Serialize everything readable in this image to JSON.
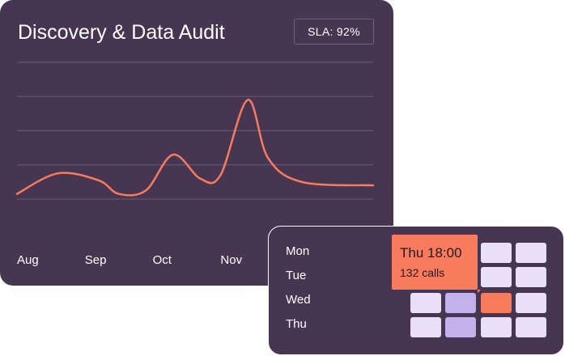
{
  "header": {
    "title": "Discovery & Data Audit",
    "sla_badge": "SLA: 92%"
  },
  "chart_data": {
    "type": "line",
    "title": "Discovery & Data Audit",
    "categories": [
      "Aug",
      "Sep",
      "Oct",
      "Nov"
    ],
    "x_range": [
      0,
      5.25
    ],
    "ylim": [
      0,
      4
    ],
    "grid": true,
    "series": [
      {
        "color": "#f77c5e",
        "points": [
          [
            0.0,
            0.15
          ],
          [
            0.6,
            0.75
          ],
          [
            1.2,
            0.55
          ],
          [
            1.5,
            0.15
          ],
          [
            1.9,
            0.25
          ],
          [
            2.3,
            1.3
          ],
          [
            2.7,
            0.6
          ],
          [
            3.0,
            0.7
          ],
          [
            3.4,
            2.9
          ],
          [
            3.7,
            1.2
          ],
          [
            4.2,
            0.5
          ],
          [
            5.25,
            0.4
          ]
        ]
      }
    ]
  },
  "heatmap": {
    "days": [
      "Mon",
      "Tue",
      "Wed",
      "Thu"
    ],
    "columns": 4,
    "levels": [
      [
        0,
        0,
        1,
        1
      ],
      [
        0,
        0,
        1,
        1
      ],
      [
        1,
        2,
        3,
        1
      ],
      [
        1,
        2,
        1,
        1
      ]
    ],
    "level_colors": [
      "#463651",
      "#e9e0f8",
      "#c3b1ec",
      "#f77c5e"
    ],
    "tooltip": {
      "title": "Thu 18:00",
      "value": "132 calls"
    }
  }
}
